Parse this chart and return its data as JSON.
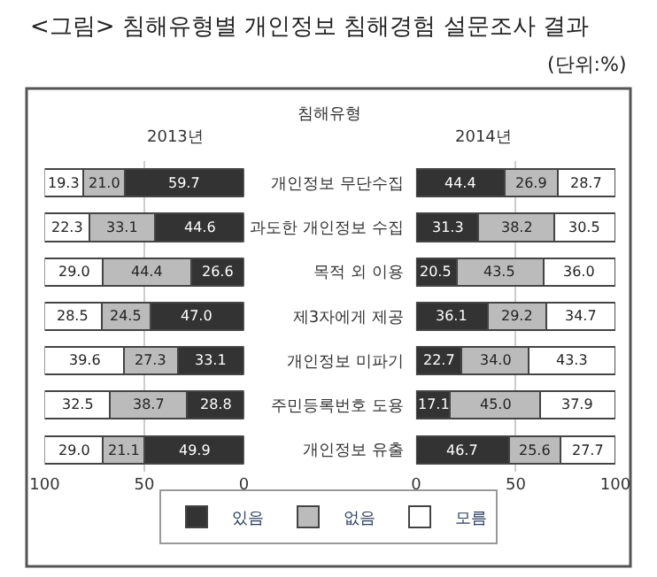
{
  "chart_data": [
    {
      "type": "bar",
      "orientation": "horizontal",
      "stacked": true,
      "title": "2013년",
      "annotations": [
        "<그림> 침해유형별 개인정보 침해경험 설문조사 결과",
        "(단위:%)"
      ],
      "categories": [
        "개인정보 무단수집",
        "과도한 개인정보 수집",
        "목적 외 이용",
        "제3자에게 제공",
        "개인정보 미파기",
        "주민등록번호 도용",
        "개인정보 유출"
      ],
      "series": [
        {
          "name": "있음",
          "color": "#333333",
          "values": [
            59.7,
            44.6,
            26.6,
            47.0,
            33.1,
            28.8,
            49.9
          ],
          "value_labels": [
            "59.7",
            "44.6",
            "26.6",
            "47.0",
            "33.1",
            "28.8",
            "49.9"
          ]
        },
        {
          "name": "없음",
          "color": "#bbbbbb",
          "values": [
            21.0,
            33.1,
            44.4,
            24.5,
            27.3,
            38.7,
            21.1
          ],
          "value_labels": [
            "21.0",
            "33.1",
            "44.4",
            "24.5",
            "27.3",
            "38.7",
            "21.1"
          ]
        },
        {
          "name": "모름",
          "color": "#ffffff",
          "values": [
            19.3,
            22.3,
            29.0,
            28.5,
            39.6,
            32.5,
            29.0
          ],
          "value_labels": [
            "19.3",
            "22.3",
            "29.0",
            "28.5",
            "39.6",
            "32.5",
            "29.0"
          ]
        }
      ],
      "xlim": [
        100,
        0
      ],
      "xticks": [
        100,
        50,
        0
      ],
      "grid": "x",
      "data_labels": true,
      "legend": "bottom",
      "tick_labels": "x"
    },
    {
      "type": "bar",
      "orientation": "horizontal",
      "stacked": true,
      "title": "2014년",
      "ylabel": "침해유형",
      "categories": [
        "개인정보 무단수집",
        "과도한 개인정보 수집",
        "목적 외 이용",
        "제3자에게 제공",
        "개인정보 미파기",
        "주민등록번호 도용",
        "개인정보 유출"
      ],
      "series": [
        {
          "name": "있음",
          "color": "#333333",
          "values": [
            44.4,
            31.3,
            20.5,
            36.1,
            22.7,
            17.1,
            46.7
          ],
          "value_labels": [
            "44.4",
            "31.3",
            "20.5",
            "36.1",
            "22.7",
            "17.1",
            "46.7"
          ]
        },
        {
          "name": "없음",
          "color": "#bbbbbb",
          "values": [
            26.9,
            38.2,
            43.5,
            29.2,
            34.0,
            45.0,
            25.6
          ],
          "value_labels": [
            "26.9",
            "38.2",
            "43.5",
            "29.2",
            "34.0",
            "45.0",
            "25.6"
          ]
        },
        {
          "name": "모름",
          "color": "#ffffff",
          "values": [
            28.7,
            30.5,
            36.0,
            34.7,
            43.3,
            37.9,
            27.7
          ],
          "value_labels": [
            "28.7",
            "30.5",
            "36.0",
            "34.7",
            "43.3",
            "37.9",
            "27.7"
          ]
        }
      ],
      "xlim": [
        0,
        100
      ],
      "xticks": [
        0,
        50,
        100
      ],
      "grid": "x",
      "data_labels": true,
      "legend": "bottom"
    }
  ]
}
